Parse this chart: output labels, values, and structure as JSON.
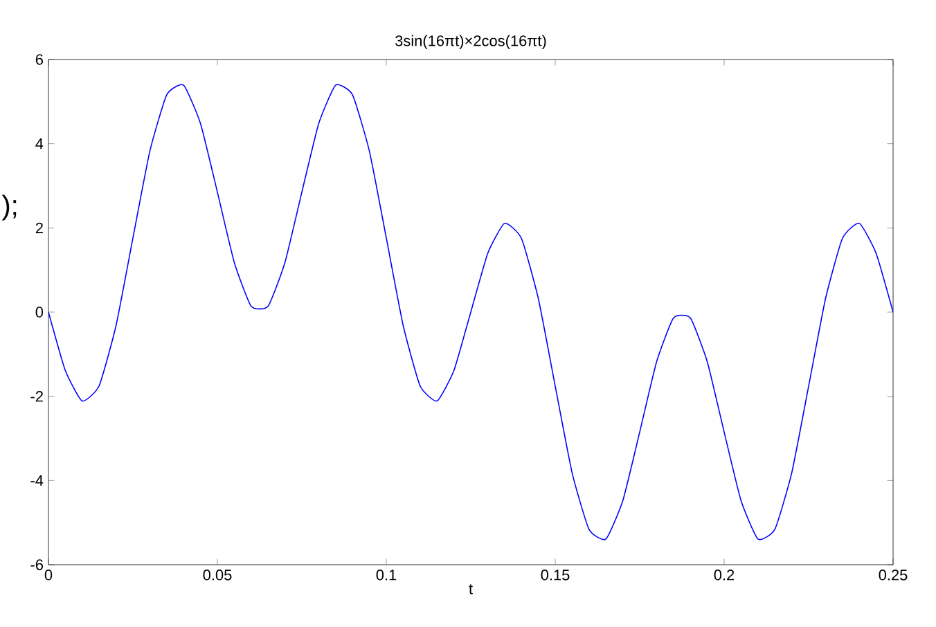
{
  "chart_data": {
    "type": "line",
    "title": "3sin(16πt)×2cos(16πt)",
    "xlabel": "t",
    "x": [
      0,
      0.005,
      0.01,
      0.015,
      0.02,
      0.025,
      0.03,
      0.035,
      0.04,
      0.045,
      0.05,
      0.055,
      0.06,
      0.065,
      0.07,
      0.075,
      0.08,
      0.085,
      0.09,
      0.095,
      0.1,
      0.105,
      0.11,
      0.115,
      0.12,
      0.125,
      0.13,
      0.135,
      0.14,
      0.145,
      0.15,
      0.155,
      0.16,
      0.165,
      0.17,
      0.175,
      0.18,
      0.185,
      0.19,
      0.195,
      0.2,
      0.205,
      0.21,
      0.215,
      0.22,
      0.225,
      0.23,
      0.235,
      0.24,
      0.245,
      0.25
    ],
    "series": [
      {
        "color": "#0000ff",
        "values": [
          0,
          -1.39,
          -2.11,
          -1.75,
          -0.32,
          1.76,
          3.82,
          5.16,
          5.39,
          4.48,
          2.85,
          1.18,
          0.14,
          0.14,
          1.18,
          2.85,
          4.48,
          5.39,
          5.16,
          3.82,
          1.76,
          -0.32,
          -1.75,
          -2.11,
          -1.39,
          0,
          1.39,
          2.11,
          1.75,
          0.32,
          -1.76,
          -3.82,
          -5.16,
          -5.39,
          -4.48,
          -2.85,
          -1.18,
          -0.14,
          -0.14,
          -1.18,
          -2.85,
          -4.48,
          -5.39,
          -5.16,
          -3.82,
          -1.76,
          0.32,
          1.75,
          2.11,
          1.39,
          0
        ]
      }
    ],
    "xlim": [
      0,
      0.25
    ],
    "ylim": [
      -6,
      6
    ],
    "xticks": [
      0,
      0.05,
      0.1,
      0.15,
      0.2,
      0.25
    ],
    "yticks": [
      -6,
      -4,
      -2,
      0,
      2,
      4,
      6
    ],
    "annotations": [
      ");"
    ]
  }
}
